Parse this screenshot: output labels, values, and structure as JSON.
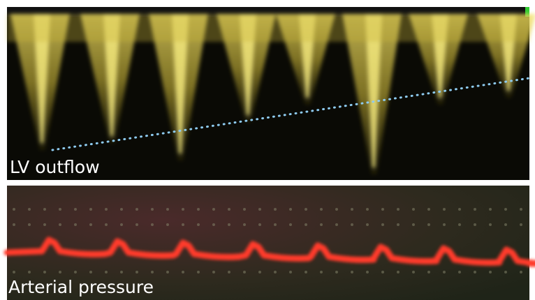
{
  "panels": [
    {
      "label": "LV outflow"
    },
    {
      "label": "Arterial pressure"
    }
  ]
}
